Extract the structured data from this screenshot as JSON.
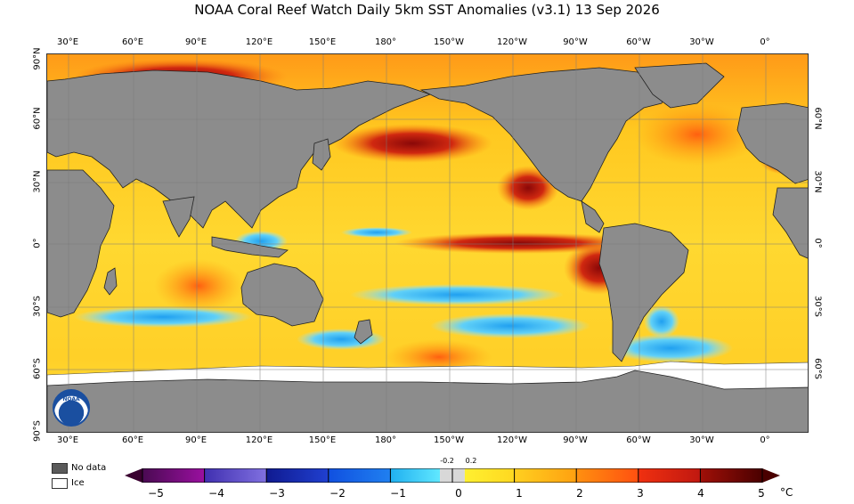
{
  "title": "NOAA Coral Reef Watch Daily 5km SST Anomalies  (v3.1)   13 Sep 2026",
  "lon_labels": [
    "30°E",
    "60°E",
    "90°E",
    "120°E",
    "150°E",
    "180°",
    "150°W",
    "120°W",
    "90°W",
    "60°W",
    "30°W",
    "0°"
  ],
  "lat_labels_left": [
    "90°N",
    "60°N",
    "30°N",
    "0°",
    "30°S",
    "60°S",
    "90°S"
  ],
  "lat_labels_right": [
    "60°N",
    "30°N",
    "0°",
    "30°S",
    "60°S"
  ],
  "legend": {
    "no_data": "No data",
    "ice": "Ice",
    "no_data_color": "#5a5a5a",
    "ice_color": "#ffffff"
  },
  "colorbar": {
    "ticks": [
      "−5",
      "−4",
      "−3",
      "−2",
      "−1",
      "0",
      "1",
      "2",
      "3",
      "4",
      "5"
    ],
    "small_labels": [
      "-0.2",
      "0.2"
    ],
    "unit": "°C",
    "colors": [
      "#3a0030",
      "#6a0078",
      "#8020b0",
      "#4030c0",
      "#2040b0",
      "#1060e0",
      "#20a0f0",
      "#40d0f8",
      "#d8d8d8",
      "#ffe030",
      "#ffc820",
      "#ffa010",
      "#ff7010",
      "#f04010",
      "#c01810",
      "#8a0808",
      "#4a0000"
    ]
  },
  "logo_text": "NOAA"
}
